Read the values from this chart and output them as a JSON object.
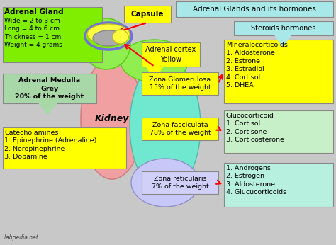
{
  "title": "Adrenal Glands and its hormones",
  "bg_color": "#c8c8c8",
  "title_box_color": "#a8e8e8",
  "steroids_box_color": "#a8e8e8",
  "yellow": "#ffff00",
  "bright_green": "#80ee00",
  "light_green": "#c8f0c8",
  "light_cyan": "#b8f0e0",
  "med_green": "#a8d8a8",
  "kidney_color": "#f0a0a0",
  "zona_fasc_color": "#70e8d0",
  "zona_glom_color": "#90ee50",
  "zona_ret_color": "#c8c8f8",
  "adrenal_outer_color": "#90ee50",
  "capsule_yellow": "#ffff40",
  "capsule_grey": "#aaaaaa",
  "adrenal_gland_label": "Adrenal Gland",
  "adrenal_gland_info": "Wide = 2 to 3 cm\nLong = 4 to 6 cm\nThickness = 1 cm\nWeight = 4 grams",
  "adrenal_medulla_label": "Adrenal Medulla\nGrey\n20% of the weight",
  "catecholamines_label": "Catecholamines\n1. Epinephrine (Adrenaline)\n2. Norepinephrine\n3. Dopamine",
  "capsule_label": "Capsule",
  "adrenal_cortex_label": "Adrenal cortex\nYellow",
  "kidney_label": "Kidney",
  "zona_glomerulosa_label": "Zona Glomerulosa\n15% of the weight",
  "zona_fasciculata_label": "Zona fasciculata\n78% of the weight",
  "zona_reticularis_label": "Zona reticularis\n7% of the weight",
  "steroids_label": "Steroids hormones",
  "mineralocorticoids_label": "Mineralocorticoids\n1. Aldosterone\n2. Estrone\n3. Estradiol\n4. Cortisol\n5. DHEA",
  "glucocorticoid_label": "Glucocorticoid\n1. Cortisol\n2. Cortisone\n3. Corticosterone",
  "androgens_label": "1. Androgens\n2. Estrogen\n3. Aldosterone\n4. Glucucorticoids",
  "watermark": "labpedia net"
}
